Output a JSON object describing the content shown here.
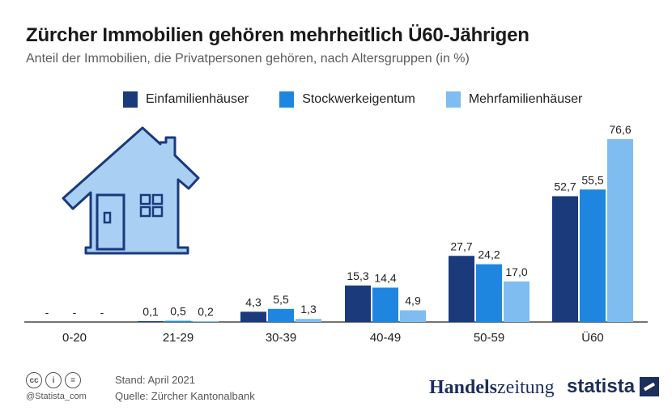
{
  "header": {
    "title": "Zürcher Immobilien gehören mehrheitlich Ü60-Jährigen",
    "subtitle": "Anteil der Immobilien, die Privatpersonen gehören, nach Altersgruppen (in %)"
  },
  "colors": {
    "einfamilien": "#1a3a7c",
    "stockwerk": "#1f86e0",
    "mehrfamilien": "#7fbdf1",
    "house_fill": "#a9cff3",
    "house_stroke": "#1a3a7c"
  },
  "icons": {
    "house": "house-icon"
  },
  "chart_data": {
    "type": "bar",
    "title": "Zürcher Immobilien gehören mehrheitlich Ü60-Jährigen",
    "subtitle": "Anteil der Immobilien, die Privatpersonen gehören, nach Altersgruppen (in %)",
    "categories": [
      "0-20",
      "21-29",
      "30-39",
      "40-49",
      "50-59",
      "Ü60"
    ],
    "series": [
      {
        "name": "Einfamilienhäuser",
        "values": [
          null,
          0.1,
          4.3,
          15.3,
          27.7,
          52.7
        ],
        "labels": [
          "-",
          "0,1",
          "4,3",
          "15,3",
          "27,7",
          "52,7"
        ]
      },
      {
        "name": "Stockwerkeigentum",
        "values": [
          null,
          0.5,
          5.5,
          14.4,
          24.2,
          55.5
        ],
        "labels": [
          "-",
          "0,5",
          "5,5",
          "14,4",
          "24,2",
          "55,5"
        ]
      },
      {
        "name": "Mehrfamilienhäuser",
        "values": [
          null,
          0.2,
          1.3,
          4.9,
          17.0,
          76.6
        ],
        "labels": [
          "-",
          "0,2",
          "1,3",
          "4,9",
          "17,0",
          "76,6"
        ]
      }
    ],
    "ylim": [
      0,
      76.6
    ],
    "grid": false,
    "legend": "top"
  },
  "footer": {
    "handle": "@Statista_com",
    "stand": "Stand: April 2021",
    "quelle": "Quelle: Zürcher Kantonalbank",
    "cc_icons": [
      "cc",
      "i",
      "="
    ],
    "brand_hz_a": "Handels",
    "brand_hz_b": "zeitung",
    "brand_statista": "statista"
  }
}
